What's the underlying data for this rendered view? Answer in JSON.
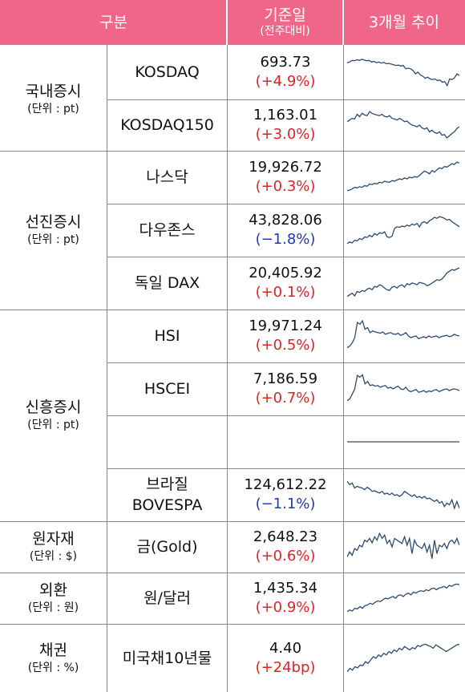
{
  "header": {
    "col_category": "구분",
    "col_value_main": "기준일",
    "col_value_sub": "(전주대비)",
    "col_trend": "3개월 추이"
  },
  "colors": {
    "header_bg": "#f06688",
    "up": "#e32222",
    "down": "#1f39b8",
    "line": "#2f4a6d"
  },
  "groups": [
    {
      "name": "국내증시",
      "unit": "(단위 : pt)"
    },
    {
      "name": "선진증시",
      "unit": "(단위 : pt)"
    },
    {
      "name": "신흥증시",
      "unit": "(단위 : pt)"
    },
    {
      "name": "원자재",
      "unit": "(단위 : $)"
    },
    {
      "name": "외환",
      "unit": "(단위 : 원)"
    },
    {
      "name": "채권",
      "unit": "(단위 : %)"
    }
  ],
  "rows": [
    {
      "name": "KOSDAQ",
      "value": "693.73",
      "change": "(+4.9%)",
      "direction": "up",
      "trend": [
        0.78,
        0.8,
        0.85,
        0.84,
        0.87,
        0.85,
        0.88,
        0.86,
        0.84,
        0.85,
        0.8,
        0.82,
        0.78,
        0.8,
        0.77,
        0.79,
        0.75,
        0.76,
        0.74,
        0.72,
        0.7,
        0.71,
        0.68,
        0.7,
        0.6,
        0.62,
        0.6,
        0.55,
        0.45,
        0.5,
        0.42,
        0.38,
        0.32,
        0.35,
        0.3,
        0.28,
        0.3,
        0.25,
        0.27,
        0.2,
        0.22,
        0.1,
        0.3,
        0.28,
        0.33,
        0.45,
        0.4
      ]
    },
    {
      "name": "KOSDAQ150",
      "value": "1,163.01",
      "change": "(+3.0%)",
      "direction": "up",
      "trend": [
        0.6,
        0.65,
        0.7,
        0.68,
        0.82,
        0.75,
        0.85,
        0.8,
        0.78,
        0.9,
        0.85,
        0.82,
        0.8,
        0.78,
        0.82,
        0.76,
        0.74,
        0.78,
        0.7,
        0.68,
        0.65,
        0.7,
        0.66,
        0.6,
        0.62,
        0.55,
        0.5,
        0.48,
        0.45,
        0.5,
        0.42,
        0.38,
        0.42,
        0.3,
        0.35,
        0.28,
        0.25,
        0.3,
        0.2,
        0.22,
        0.12,
        0.18,
        0.25,
        0.3,
        0.4,
        0.45
      ]
    },
    {
      "name": "나스닥",
      "value": "19,926.72",
      "change": "(+0.3%)",
      "direction": "up",
      "trend": [
        0.1,
        0.12,
        0.15,
        0.2,
        0.18,
        0.22,
        0.2,
        0.25,
        0.23,
        0.3,
        0.28,
        0.32,
        0.3,
        0.35,
        0.33,
        0.38,
        0.36,
        0.35,
        0.4,
        0.38,
        0.42,
        0.45,
        0.43,
        0.48,
        0.45,
        0.5,
        0.48,
        0.52,
        0.5,
        0.55,
        0.62,
        0.68,
        0.65,
        0.6,
        0.7,
        0.65,
        0.72,
        0.78,
        0.75,
        0.82,
        0.8,
        0.85,
        0.9,
        0.88,
        0.95,
        0.92
      ]
    },
    {
      "name": "다우존스",
      "value": "43,828.06",
      "change": "(−1.8%)",
      "direction": "down",
      "trend": [
        0.1,
        0.15,
        0.12,
        0.2,
        0.18,
        0.25,
        0.22,
        0.3,
        0.28,
        0.35,
        0.3,
        0.4,
        0.35,
        0.42,
        0.4,
        0.45,
        0.3,
        0.28,
        0.32,
        0.55,
        0.6,
        0.58,
        0.62,
        0.6,
        0.65,
        0.62,
        0.68,
        0.65,
        0.7,
        0.6,
        0.72,
        0.75,
        0.7,
        0.78,
        0.82,
        0.88,
        0.85,
        0.9,
        0.88,
        0.85,
        0.8,
        0.82,
        0.75,
        0.7,
        0.65,
        0.6
      ]
    },
    {
      "name": "독일 DAX",
      "value": "20,405.92",
      "change": "(+0.1%)",
      "direction": "up",
      "trend": [
        0.1,
        0.15,
        0.2,
        0.12,
        0.25,
        0.22,
        0.28,
        0.25,
        0.32,
        0.35,
        0.3,
        0.4,
        0.38,
        0.45,
        0.42,
        0.35,
        0.3,
        0.28,
        0.38,
        0.4,
        0.35,
        0.42,
        0.45,
        0.38,
        0.48,
        0.45,
        0.5,
        0.48,
        0.45,
        0.52,
        0.5,
        0.48,
        0.42,
        0.45,
        0.5,
        0.55,
        0.6,
        0.58,
        0.62,
        0.7,
        0.8,
        0.85,
        0.9,
        0.88,
        0.92,
        0.95
      ]
    },
    {
      "name": "HSI",
      "value": "19,971.24",
      "change": "(+0.5%)",
      "direction": "up",
      "trend": [
        0.15,
        0.2,
        0.3,
        0.45,
        0.9,
        0.85,
        0.95,
        0.7,
        0.75,
        0.6,
        0.65,
        0.62,
        0.6,
        0.58,
        0.62,
        0.55,
        0.58,
        0.6,
        0.56,
        0.55,
        0.58,
        0.52,
        0.55,
        0.6,
        0.5,
        0.45,
        0.48,
        0.5,
        0.42,
        0.45,
        0.48,
        0.44,
        0.5,
        0.46,
        0.48,
        0.5,
        0.45,
        0.48,
        0.5,
        0.52,
        0.48,
        0.5,
        0.55,
        0.52,
        0.5
      ]
    },
    {
      "name": "HSCEI",
      "value": "7,186.59",
      "change": "(+0.7%)",
      "direction": "up",
      "trend": [
        0.15,
        0.2,
        0.35,
        0.5,
        0.9,
        0.85,
        0.92,
        0.65,
        0.72,
        0.6,
        0.62,
        0.58,
        0.6,
        0.55,
        0.58,
        0.6,
        0.52,
        0.55,
        0.5,
        0.55,
        0.58,
        0.5,
        0.48,
        0.55,
        0.45,
        0.42,
        0.45,
        0.48,
        0.4,
        0.42,
        0.45,
        0.4,
        0.44,
        0.42,
        0.46,
        0.48,
        0.42,
        0.45,
        0.48,
        0.5,
        0.45,
        0.48,
        0.5,
        0.48,
        0.45
      ]
    },
    {
      "name": "",
      "value": "",
      "change": "",
      "direction": "up",
      "trend": [
        0.5,
        0.5
      ]
    },
    {
      "name": "브라질\nBOVESPA",
      "value": "124,612.22",
      "change": "(−1.1%)",
      "direction": "down",
      "trend": [
        0.9,
        0.8,
        0.85,
        0.7,
        0.75,
        0.72,
        0.7,
        0.65,
        0.72,
        0.68,
        0.6,
        0.62,
        0.58,
        0.55,
        0.6,
        0.52,
        0.55,
        0.5,
        0.55,
        0.48,
        0.5,
        0.45,
        0.5,
        0.6,
        0.55,
        0.5,
        0.45,
        0.5,
        0.42,
        0.45,
        0.4,
        0.45,
        0.38,
        0.4,
        0.35,
        0.3,
        0.35,
        0.25,
        0.3,
        0.15,
        0.25,
        0.2,
        0.35,
        0.1,
        0.3,
        0.1
      ]
    },
    {
      "name": "금(Gold)",
      "value": "2,648.23",
      "change": "(+0.6%)",
      "direction": "up",
      "trend": [
        0.2,
        0.35,
        0.25,
        0.45,
        0.4,
        0.55,
        0.5,
        0.7,
        0.65,
        0.75,
        0.62,
        0.8,
        0.7,
        0.9,
        0.75,
        0.85,
        0.6,
        0.7,
        0.5,
        0.75,
        0.7,
        0.65,
        0.6,
        0.8,
        0.55,
        0.75,
        0.3,
        0.7,
        0.55,
        0.5,
        0.45,
        0.6,
        0.35,
        0.55,
        0.15,
        0.7,
        0.3,
        0.55,
        0.5,
        0.6,
        0.45,
        0.65,
        0.7,
        0.6,
        0.75,
        0.55
      ]
    },
    {
      "name": "원/달러",
      "value": "1,435.34",
      "change": "(+0.9%)",
      "direction": "up",
      "trend": [
        0.1,
        0.15,
        0.12,
        0.2,
        0.18,
        0.25,
        0.2,
        0.28,
        0.3,
        0.35,
        0.32,
        0.38,
        0.42,
        0.4,
        0.45,
        0.5,
        0.48,
        0.52,
        0.55,
        0.5,
        0.58,
        0.6,
        0.55,
        0.62,
        0.65,
        0.6,
        0.68,
        0.65,
        0.7,
        0.72,
        0.7,
        0.75,
        0.72,
        0.78,
        0.8,
        0.75,
        0.8,
        0.82,
        0.85,
        0.8,
        0.88,
        0.85,
        0.9,
        0.92,
        0.9
      ]
    },
    {
      "name": "미국채10년물",
      "value": "4.40",
      "change": "(+24bp)",
      "direction": "up",
      "trend": [
        0.1,
        0.2,
        0.15,
        0.25,
        0.22,
        0.3,
        0.28,
        0.4,
        0.35,
        0.45,
        0.55,
        0.5,
        0.6,
        0.55,
        0.65,
        0.6,
        0.7,
        0.65,
        0.75,
        0.7,
        0.8,
        0.75,
        0.85,
        0.8,
        0.75,
        0.82,
        0.78,
        0.88,
        0.85,
        0.9,
        0.92,
        0.88,
        0.85,
        0.8,
        0.9,
        0.85,
        0.8,
        0.75,
        0.7,
        0.75,
        0.8,
        0.85,
        0.9,
        0.92
      ]
    }
  ]
}
